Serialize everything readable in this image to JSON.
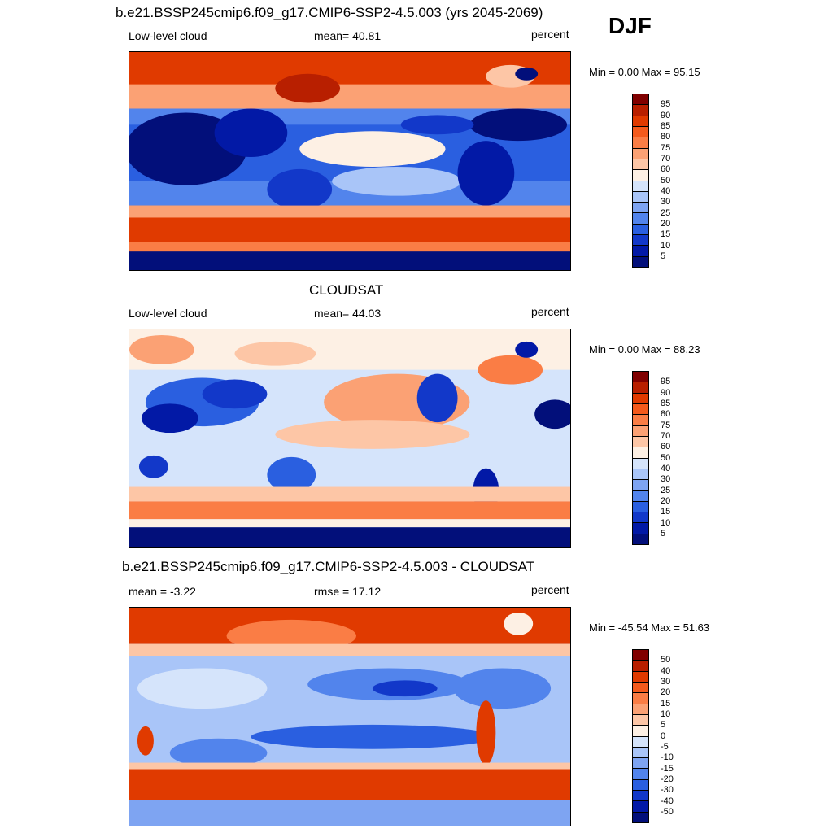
{
  "season": "DJF",
  "panels": [
    {
      "title": "b.e21.BSSP245cmip6.f09_g17.CMIP6-SSP2-4.5.003 (yrs 2045-2069)",
      "left_label": "Low-level cloud",
      "center_label": "mean=  40.81",
      "right_label": "percent",
      "minmax": "Min =    0.00 Max =  95.15",
      "colorbar_ticks": [
        "95",
        "90",
        "85",
        "80",
        "75",
        "70",
        "60",
        "50",
        "40",
        "30",
        "25",
        "20",
        "15",
        "10",
        "5"
      ],
      "colorbar_colors": [
        "#800000",
        "#b81f00",
        "#e03a00",
        "#f45a1c",
        "#fa7d45",
        "#fba174",
        "#fdc6a6",
        "#fdf0e4",
        "#d5e4fb",
        "#a9c5f8",
        "#7ea4f2",
        "#5284ec",
        "#2a5fe0",
        "#1238c9",
        "#0219a6",
        "#020f7a"
      ]
    },
    {
      "title": "CLOUDSAT",
      "left_label": "Low-level cloud",
      "center_label": "mean=  44.03",
      "right_label": "percent",
      "minmax": "Min =    0.00 Max =  88.23",
      "colorbar_ticks": [
        "95",
        "90",
        "85",
        "80",
        "75",
        "70",
        "60",
        "50",
        "40",
        "30",
        "25",
        "20",
        "15",
        "10",
        "5"
      ],
      "colorbar_colors": [
        "#800000",
        "#b81f00",
        "#e03a00",
        "#f45a1c",
        "#fa7d45",
        "#fba174",
        "#fdc6a6",
        "#fdf0e4",
        "#d5e4fb",
        "#a9c5f8",
        "#7ea4f2",
        "#5284ec",
        "#2a5fe0",
        "#1238c9",
        "#0219a6",
        "#020f7a"
      ]
    },
    {
      "title": "b.e21.BSSP245cmip6.f09_g17.CMIP6-SSP2-4.5.003 - CLOUDSAT",
      "left_label": "mean =  -3.22",
      "center_label": "rmse =  17.12",
      "right_label": "percent",
      "minmax": "Min = -45.54 Max =  51.63",
      "colorbar_ticks": [
        "50",
        "40",
        "30",
        "20",
        "15",
        "10",
        "5",
        "0",
        "-5",
        "-10",
        "-15",
        "-20",
        "-30",
        "-40",
        "-50"
      ],
      "colorbar_colors": [
        "#800000",
        "#b81f00",
        "#e03a00",
        "#f45a1c",
        "#fa7d45",
        "#fba174",
        "#fdc6a6",
        "#fdf0e4",
        "#d5e4fb",
        "#a9c5f8",
        "#7ea4f2",
        "#5284ec",
        "#2a5fe0",
        "#1238c9",
        "#0219a6",
        "#020f7a"
      ]
    }
  ]
}
